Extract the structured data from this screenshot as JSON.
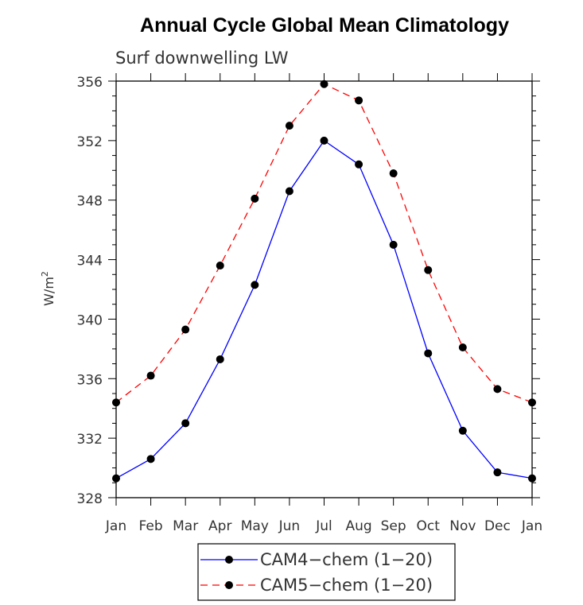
{
  "chart_data": {
    "type": "line",
    "title": "Annual Cycle Global Mean Climatology",
    "subtitle": "Surf downwelling LW",
    "xlabel": "",
    "ylabel_base": "W/m",
    "ylabel_exp": "2",
    "categories": [
      "Jan",
      "Feb",
      "Mar",
      "Apr",
      "May",
      "Jun",
      "Jul",
      "Aug",
      "Sep",
      "Oct",
      "Nov",
      "Dec",
      "Jan"
    ],
    "ylim": [
      328,
      356
    ],
    "yticks": [
      328,
      332,
      336,
      340,
      344,
      348,
      352,
      356
    ],
    "grid": false,
    "legend_position": "bottom",
    "series": [
      {
        "name": "CAM4-chem (1-20)",
        "legend_label": "CAM4−chem (1−20)",
        "color": "#0000ff",
        "dash": "solid",
        "marker": "filled-circle",
        "values": [
          329.3,
          330.6,
          333.0,
          337.3,
          342.3,
          348.6,
          352.0,
          350.4,
          345.0,
          337.7,
          332.5,
          329.7,
          329.3
        ]
      },
      {
        "name": "CAM5-chem (1-20)",
        "legend_label": "CAM5−chem (1−20)",
        "color": "#ff0000",
        "dash": "dashed",
        "marker": "filled-circle",
        "values": [
          334.4,
          336.2,
          339.3,
          343.6,
          348.1,
          353.0,
          355.8,
          354.7,
          349.8,
          343.3,
          338.1,
          335.3,
          334.4
        ]
      }
    ]
  }
}
